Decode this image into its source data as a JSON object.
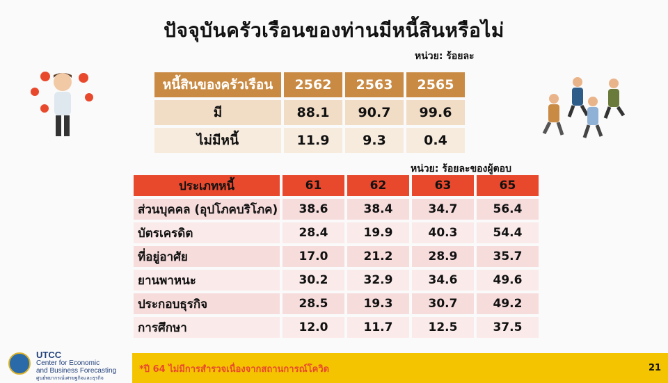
{
  "title": "ปัจจุบันครัวเรือนของท่านมีหนี้สินหรือไม่",
  "unit_1": "หน่วย: ร้อยละ",
  "table_1": {
    "header": [
      "หนี้สินของครัวเรือน",
      "2562",
      "2563",
      "2565"
    ],
    "rows": [
      [
        "มี",
        "88.1",
        "90.7",
        "99.6"
      ],
      [
        "ไม่มีหนี้",
        "11.9",
        "9.3",
        "0.4"
      ]
    ]
  },
  "unit_2": "หน่วย: ร้อยละของผู้ตอบ",
  "table_2": {
    "header": [
      "ประเภทหนี้",
      "61",
      "62",
      "63",
      "65"
    ],
    "rows": [
      [
        "ส่วนบุคคล (อุปโภคบริโภค)",
        "38.6",
        "38.4",
        "34.7",
        "56.4"
      ],
      [
        "บัตรเครดิต",
        "28.4",
        "19.9",
        "40.3",
        "54.4"
      ],
      [
        "ที่อยู่อาศัย",
        "17.0",
        "21.2",
        "28.9",
        "35.7"
      ],
      [
        "ยานพาหนะ",
        "30.2",
        "32.9",
        "34.6",
        "49.6"
      ],
      [
        "ประกอบธุรกิจ",
        "28.5",
        "19.3",
        "30.7",
        "49.2"
      ],
      [
        "การศึกษา",
        "12.0",
        "11.7",
        "12.5",
        "37.5"
      ]
    ]
  },
  "footnote": "*ปี 64 ไม่มีการสำรวจเนื่องจากสถานการณ์โควิด",
  "page_number": "21",
  "logo": {
    "name": "UTCC",
    "line1": "Center for Economic",
    "line2": "and Business Forecasting",
    "line3": "ศูนย์พยากรณ์เศรษฐกิจและธุรกิจ"
  },
  "icons": {
    "left": "stressed-man-with-expense-icons",
    "right": "jumping-happy-people"
  }
}
